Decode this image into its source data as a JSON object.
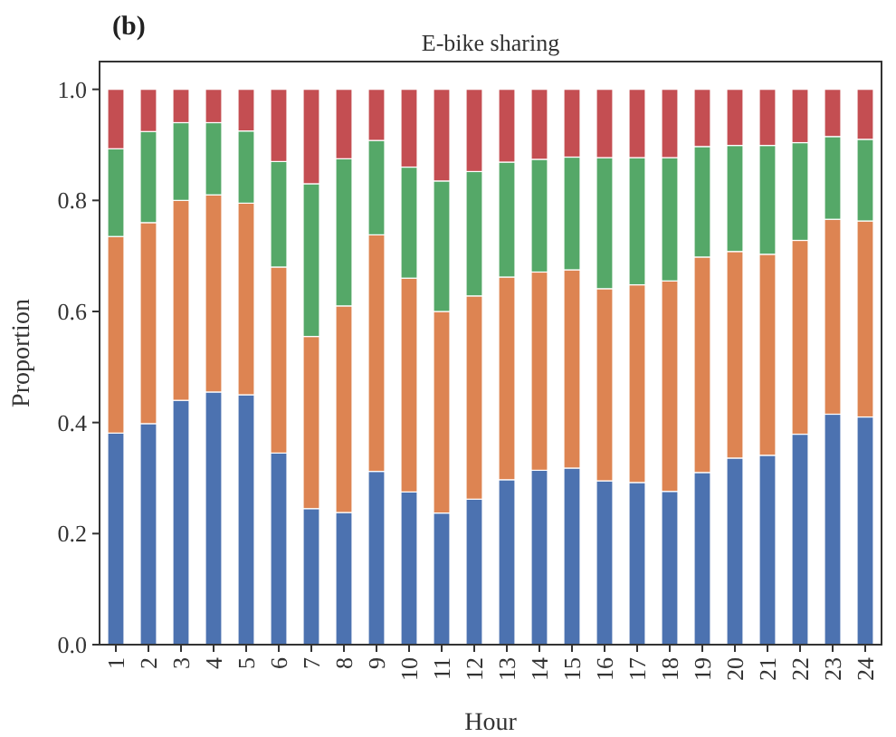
{
  "chart_data": {
    "type": "bar",
    "title": "E-bike sharing",
    "xlabel": "Hour",
    "ylabel": "Proportion",
    "annotations": [
      "(b)"
    ],
    "stacked": true,
    "categories": [
      "1",
      "2",
      "3",
      "4",
      "5",
      "6",
      "7",
      "8",
      "9",
      "10",
      "11",
      "12",
      "13",
      "14",
      "15",
      "16",
      "17",
      "18",
      "19",
      "20",
      "21",
      "22",
      "23",
      "24"
    ],
    "ylim": [
      0,
      1.05
    ],
    "yticks": [
      {
        "value": 0,
        "label": "0.0"
      },
      {
        "value": 0.2,
        "label": "0.2"
      },
      {
        "value": 0.4,
        "label": "0.4"
      },
      {
        "value": 0.6,
        "label": "0.6"
      },
      {
        "value": 0.8,
        "label": "0.8"
      },
      {
        "value": 1,
        "label": "1.0"
      }
    ],
    "series": [
      {
        "color": "#4c72b0",
        "values": [
          0.381,
          0.398,
          0.44,
          0.455,
          0.45,
          0.345,
          0.245,
          0.238,
          0.312,
          0.275,
          0.237,
          0.262,
          0.297,
          0.314,
          0.318,
          0.295,
          0.292,
          0.276,
          0.31,
          0.336,
          0.341,
          0.379,
          0.415,
          0.41
        ]
      },
      {
        "color": "#dd8452",
        "values": [
          0.354,
          0.362,
          0.36,
          0.355,
          0.345,
          0.335,
          0.31,
          0.372,
          0.426,
          0.385,
          0.363,
          0.366,
          0.365,
          0.357,
          0.357,
          0.346,
          0.356,
          0.379,
          0.388,
          0.372,
          0.362,
          0.349,
          0.351,
          0.353
        ]
      },
      {
        "color": "#55a868",
        "values": [
          0.158,
          0.164,
          0.14,
          0.13,
          0.13,
          0.19,
          0.275,
          0.265,
          0.17,
          0.2,
          0.235,
          0.224,
          0.207,
          0.203,
          0.203,
          0.236,
          0.229,
          0.222,
          0.199,
          0.191,
          0.196,
          0.176,
          0.149,
          0.147
        ]
      },
      {
        "color": "#c44e52",
        "values": [
          0.107,
          0.076,
          0.06,
          0.06,
          0.075,
          0.13,
          0.17,
          0.125,
          0.092,
          0.14,
          0.165,
          0.148,
          0.131,
          0.126,
          0.122,
          0.123,
          0.123,
          0.123,
          0.103,
          0.101,
          0.101,
          0.096,
          0.085,
          0.09
        ]
      }
    ]
  }
}
